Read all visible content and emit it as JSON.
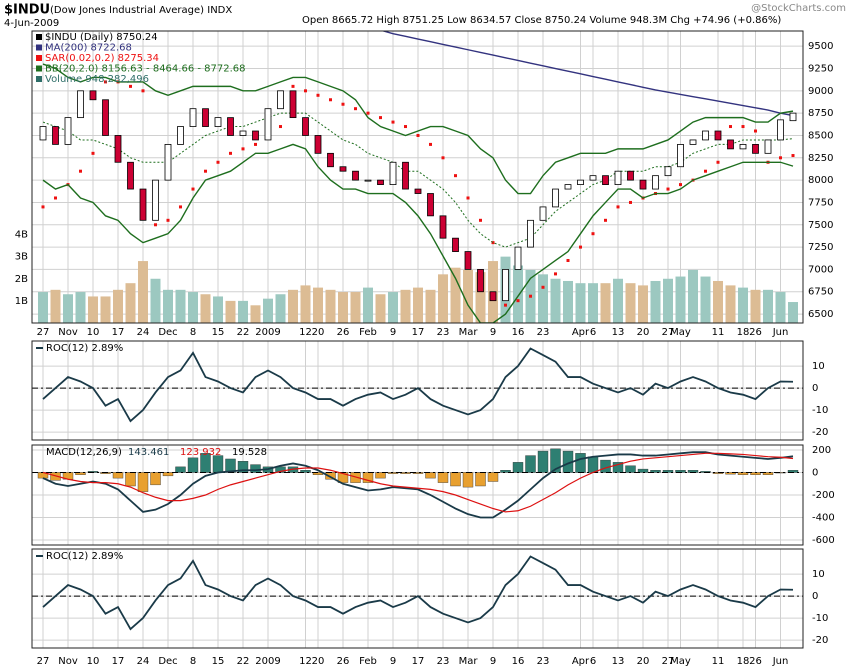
{
  "header": {
    "symbol": "$INDU",
    "name": "(Dow Jones Industrial Average) INDX",
    "date": "4-Jun-2009",
    "stats": "Open 8665.72 High 8751.25 Low 8634.57 Close 8750.24 Volume 948.3M Chg +74.96 (+0.86%)",
    "watermark": "@StockCharts.com"
  },
  "chart_data": [
    {
      "type": "candlestick",
      "legend": "$INDU (Daily) 8750.24",
      "categories": [
        "27",
        null,
        "Nov",
        null,
        "10",
        null,
        "17",
        null,
        "24",
        null,
        "Dec",
        null,
        "8",
        null,
        "15",
        null,
        "22",
        null,
        "2009",
        null,
        null,
        "12",
        "20",
        null,
        "26",
        null,
        "Feb",
        null,
        "9",
        null,
        "17",
        null,
        "23",
        null,
        "Mar",
        null,
        "9",
        null,
        "16",
        null,
        "23",
        null,
        null,
        "Apr",
        "6",
        null,
        "13",
        null,
        "20",
        null,
        "27",
        "May",
        null,
        null,
        "11",
        null,
        "18",
        "26",
        null,
        "Jun",
        null
      ],
      "open": [
        8450,
        8600,
        8400,
        8700,
        9000,
        8900,
        8500,
        8200,
        7900,
        7550,
        8000,
        8400,
        8600,
        8800,
        8600,
        8700,
        8500,
        8550,
        8450,
        8800,
        9000,
        8700,
        8500,
        8300,
        8150,
        8100,
        8000,
        8000,
        7950,
        8200,
        7900,
        7850,
        7600,
        7350,
        7200,
        7000,
        6750,
        6650,
        7000,
        7250,
        7550,
        7700,
        7900,
        7950,
        8000,
        8050,
        7950,
        8100,
        8000,
        7900,
        8050,
        8150,
        8400,
        8450,
        8550,
        8450,
        8350,
        8400,
        8300,
        8450,
        8665.72
      ],
      "close": [
        8600,
        8400,
        8700,
        9000,
        8900,
        8500,
        8200,
        7900,
        7550,
        8000,
        8400,
        8600,
        8800,
        8600,
        8700,
        8500,
        8550,
        8450,
        8800,
        9000,
        8700,
        8500,
        8300,
        8150,
        8100,
        8000,
        8000,
        7950,
        8200,
        7900,
        7850,
        7600,
        7350,
        7200,
        7000,
        6750,
        6650,
        7000,
        7250,
        7550,
        7700,
        7900,
        7950,
        8000,
        8050,
        7950,
        8100,
        8000,
        7900,
        8050,
        8150,
        8400,
        8450,
        8550,
        8450,
        8350,
        8400,
        8300,
        8450,
        8675,
        8750.24
      ],
      "up_color": "#ffffff",
      "down_color": "#cc0033",
      "ylim": [
        6400,
        9670
      ],
      "yticks": [
        6500,
        6750,
        7000,
        7250,
        7500,
        7750,
        8000,
        8250,
        8500,
        8750,
        9000,
        9250,
        9500
      ],
      "grid": true,
      "series": [
        {
          "name": "MA(200) 8722.68",
          "color": "#33337f",
          "style": "solid",
          "values": [
            null,
            null,
            null,
            null,
            null,
            null,
            null,
            null,
            null,
            null,
            null,
            null,
            null,
            null,
            null,
            null,
            null,
            null,
            null,
            null,
            null,
            null,
            null,
            null,
            null,
            null,
            null,
            9680,
            9640,
            9610,
            9580,
            9550,
            9520,
            9490,
            9460,
            9430,
            9400,
            9370,
            9340,
            9310,
            9280,
            9250,
            9220,
            9190,
            9160,
            9130,
            9100,
            9070,
            9040,
            9010,
            8985,
            8960,
            8935,
            8910,
            8885,
            8860,
            8835,
            8810,
            8785,
            8750,
            8722.68
          ]
        },
        {
          "name": "SAR(0.02,0.2) 8275.34",
          "color": "#ee1111",
          "style": "dots",
          "values": [
            7700,
            7800,
            7950,
            8100,
            8300,
            9100,
            9100,
            9050,
            9000,
            7500,
            7550,
            7700,
            7900,
            8100,
            8200,
            8300,
            8350,
            8400,
            8500,
            8600,
            9050,
            9000,
            8950,
            8900,
            8850,
            8800,
            8750,
            8700,
            8650,
            8600,
            8500,
            8400,
            8250,
            8050,
            7800,
            7550,
            7300,
            6600,
            6650,
            6700,
            6800,
            6950,
            7100,
            7250,
            7400,
            7550,
            7700,
            7750,
            7800,
            7850,
            7900,
            7950,
            8000,
            8100,
            8200,
            8600,
            8600,
            8550,
            8200,
            8250,
            8275.34
          ]
        },
        {
          "name": "BB(20,2.0) 8156.63 - 8464.66 - 8772.68",
          "color": "#1e6e1e",
          "style": "band",
          "upper": [
            9300,
            9250,
            9150,
            9100,
            9150,
            9150,
            9100,
            9100,
            9100,
            9000,
            8950,
            9000,
            9050,
            9050,
            9050,
            9050,
            9000,
            9000,
            9050,
            9100,
            9150,
            9150,
            9100,
            9050,
            9000,
            8900,
            8700,
            8600,
            8550,
            8500,
            8550,
            8600,
            8600,
            8550,
            8500,
            8350,
            8250,
            8000,
            7850,
            7850,
            8050,
            8200,
            8250,
            8300,
            8300,
            8300,
            8350,
            8350,
            8350,
            8400,
            8450,
            8550,
            8650,
            8700,
            8700,
            8700,
            8700,
            8650,
            8650,
            8750,
            8772.68
          ],
          "values": [
            8650,
            8600,
            8550,
            8450,
            8450,
            8400,
            8350,
            8250,
            8200,
            8200,
            8200,
            8300,
            8400,
            8500,
            8550,
            8600,
            8600,
            8650,
            8700,
            8750,
            8750,
            8750,
            8650,
            8550,
            8450,
            8400,
            8300,
            8250,
            8200,
            8100,
            8100,
            8000,
            7900,
            7750,
            7550,
            7400,
            7300,
            7250,
            7300,
            7350,
            7500,
            7650,
            7750,
            7850,
            7950,
            8000,
            8100,
            8100,
            8100,
            8150,
            8150,
            8200,
            8300,
            8350,
            8400,
            8400,
            8450,
            8450,
            8450,
            8450,
            8464.66
          ],
          "lower": [
            8000,
            7900,
            7950,
            7800,
            7750,
            7600,
            7550,
            7400,
            7300,
            7350,
            7400,
            7550,
            7800,
            8000,
            8050,
            8100,
            8200,
            8300,
            8300,
            8350,
            8400,
            8350,
            8150,
            8000,
            7900,
            7900,
            7850,
            7850,
            7850,
            7750,
            7600,
            7400,
            7150,
            6900,
            6600,
            6400,
            6400,
            6500,
            6700,
            6900,
            7000,
            7100,
            7200,
            7400,
            7600,
            7750,
            7900,
            7900,
            7800,
            7850,
            7850,
            7900,
            8000,
            8050,
            8100,
            8150,
            8200,
            8200,
            8200,
            8200,
            8156.63
          ]
        }
      ],
      "volume": {
        "name": "Volume 948,282,496",
        "up_color": "#9cc8c0",
        "down_color": "#dcbc94",
        "values": [
          1.4,
          1.5,
          1.3,
          1.4,
          1.2,
          1.2,
          1.5,
          1.8,
          2.8,
          2.0,
          1.5,
          1.5,
          1.4,
          1.3,
          1.2,
          1.0,
          1.0,
          0.8,
          1.1,
          1.3,
          1.5,
          1.7,
          1.6,
          1.5,
          1.4,
          1.4,
          1.6,
          1.3,
          1.4,
          1.5,
          1.6,
          1.5,
          2.2,
          2.5,
          2.4,
          2.3,
          2.8,
          3.0,
          2.6,
          2.4,
          2.2,
          2.0,
          1.9,
          1.8,
          1.8,
          1.8,
          2.0,
          1.8,
          1.7,
          1.9,
          2.0,
          2.1,
          2.4,
          2.1,
          1.9,
          1.7,
          1.6,
          1.5,
          1.5,
          1.4,
          0.948
        ],
        "ylim": [
          0,
          13.2
        ],
        "yticks": [
          {
            "value": 1,
            "label": "1B"
          },
          {
            "value": 2,
            "label": "2B"
          },
          {
            "value": 3,
            "label": "3B"
          },
          {
            "value": 4,
            "label": "4B"
          }
        ]
      }
    },
    {
      "type": "line",
      "legend": "ROC(12) 2.89%",
      "color": "#1a3a48",
      "values": [
        -5,
        0,
        5,
        3,
        0,
        -8,
        -5,
        -15,
        -10,
        -2,
        5,
        8,
        16,
        5,
        3,
        0,
        -2,
        5,
        8,
        5,
        0,
        -2,
        -5,
        -5,
        -8,
        -5,
        -3,
        -2,
        -5,
        -3,
        0,
        -5,
        -8,
        -10,
        -12,
        -10,
        -5,
        5,
        10,
        18,
        15,
        12,
        5,
        5,
        2,
        0,
        -2,
        0,
        -3,
        2,
        0,
        3,
        5,
        3,
        0,
        -2,
        -3,
        -5,
        0,
        3,
        2.89
      ],
      "ylim": [
        -23.6,
        21.4
      ],
      "yticks": [
        -20,
        -10,
        0,
        10
      ],
      "grid": true
    },
    {
      "type": "macd",
      "legend": "MACD(12,26,9)",
      "series": [
        {
          "name": "143.461",
          "color": "#1a3a48",
          "kind": "line",
          "values": [
            -50,
            -100,
            -120,
            -100,
            -80,
            -100,
            -150,
            -250,
            -350,
            -330,
            -280,
            -200,
            -100,
            -30,
            0,
            10,
            20,
            20,
            30,
            60,
            80,
            60,
            20,
            -40,
            -100,
            -130,
            -160,
            -150,
            -130,
            -140,
            -150,
            -200,
            -260,
            -320,
            -370,
            -400,
            -400,
            -330,
            -250,
            -150,
            -50,
            30,
            80,
            120,
            140,
            150,
            160,
            160,
            150,
            150,
            160,
            170,
            180,
            180,
            160,
            150,
            140,
            130,
            120,
            130,
            143.461
          ]
        },
        {
          "name": "123.932",
          "color": "#dd1111",
          "kind": "line",
          "values": [
            0,
            -30,
            -60,
            -80,
            -90,
            -90,
            -100,
            -130,
            -180,
            -220,
            -250,
            -250,
            -230,
            -200,
            -150,
            -110,
            -80,
            -50,
            -20,
            10,
            30,
            40,
            40,
            20,
            -10,
            -40,
            -70,
            -100,
            -120,
            -130,
            -140,
            -150,
            -170,
            -200,
            -240,
            -280,
            -320,
            -350,
            -340,
            -300,
            -240,
            -180,
            -110,
            -50,
            0,
            40,
            70,
            100,
            120,
            130,
            140,
            150,
            160,
            170,
            170,
            165,
            160,
            150,
            140,
            135,
            123.932
          ]
        },
        {
          "name": "19.528",
          "color": "#2e7f72",
          "neg_color": "#e8a030",
          "kind": "histogram",
          "values": [
            -50,
            -70,
            -60,
            -20,
            10,
            -10,
            -50,
            -120,
            -170,
            -110,
            -30,
            50,
            130,
            170,
            150,
            120,
            100,
            70,
            50,
            50,
            50,
            20,
            -20,
            -60,
            -90,
            -90,
            -90,
            -50,
            -10,
            -10,
            -10,
            -50,
            -90,
            -120,
            -130,
            -120,
            -80,
            20,
            90,
            150,
            190,
            210,
            190,
            170,
            140,
            110,
            90,
            60,
            30,
            20,
            20,
            20,
            20,
            10,
            -10,
            -15,
            -20,
            -20,
            -20,
            -5,
            19.528
          ]
        }
      ],
      "ylim": [
        -644,
        244
      ],
      "yticks": [
        -600,
        -400,
        -200,
        0,
        200
      ],
      "grid": true
    }
  ]
}
